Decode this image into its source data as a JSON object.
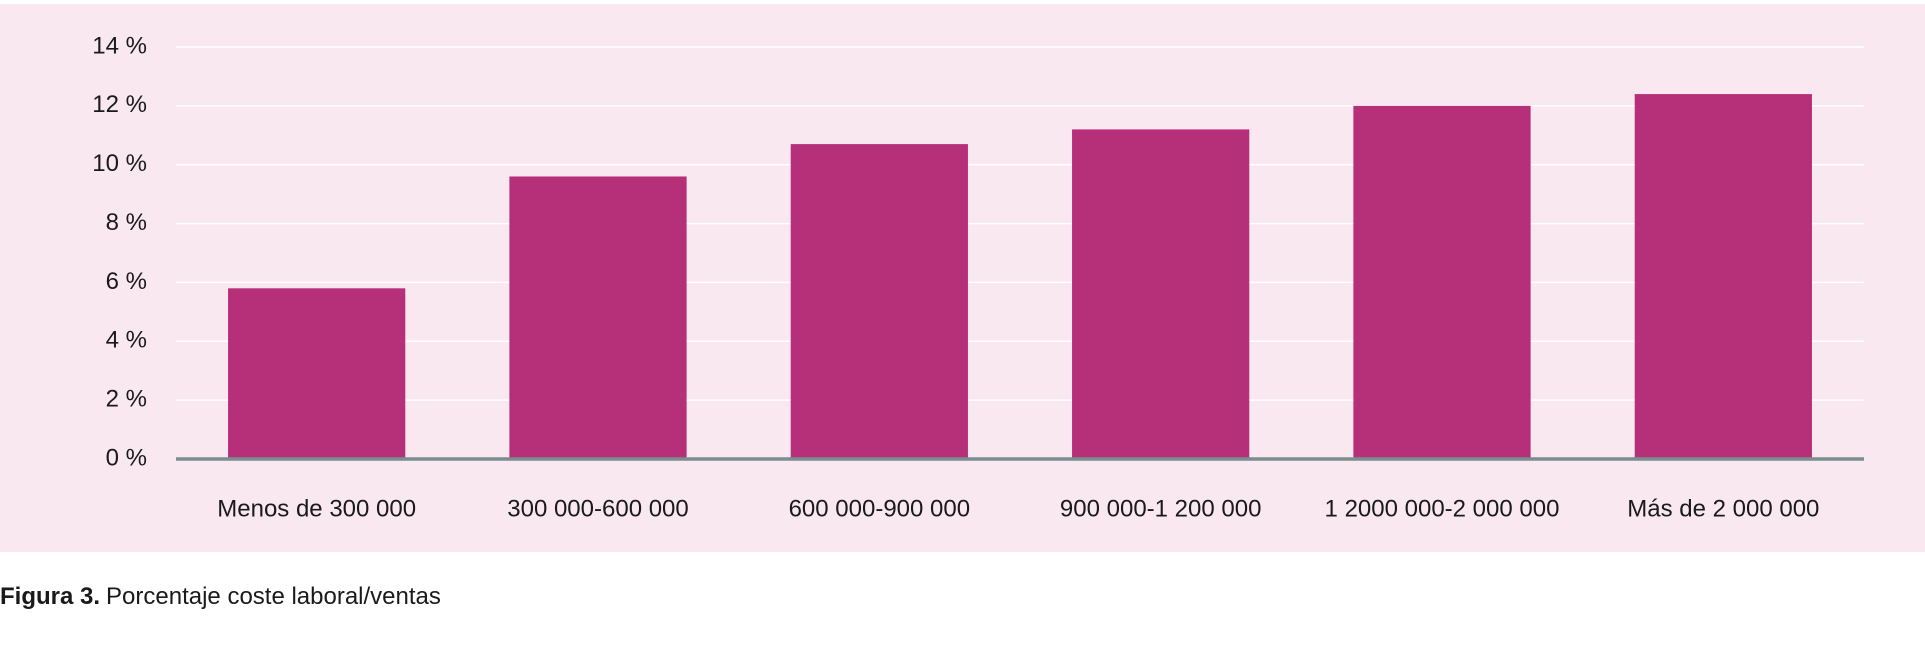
{
  "chart_data": {
    "type": "bar",
    "categories": [
      "Menos de 300 000",
      "300 000-600 000",
      "600 000-900 000",
      "900 000-1 200 000",
      "1 2000 000-2 000 000",
      "Más de 2 000 000"
    ],
    "values": [
      5.8,
      9.6,
      10.7,
      11.2,
      12.0,
      12.4
    ],
    "color": "#b52f79",
    "ylim": [
      0,
      14
    ],
    "yticks": [
      {
        "value": 0,
        "label": "0 %"
      },
      {
        "value": 2,
        "label": "2 %"
      },
      {
        "value": 4,
        "label": "4 %"
      },
      {
        "value": 6,
        "label": "6 %"
      },
      {
        "value": 8,
        "label": "8 %"
      },
      {
        "value": 10,
        "label": "10 %"
      },
      {
        "value": 12,
        "label": "12 %"
      },
      {
        "value": 14,
        "label": "14 %"
      }
    ],
    "grid": true,
    "caption_label": "Figura 3.",
    "caption": "Porcentaje coste laboral/ventas"
  }
}
